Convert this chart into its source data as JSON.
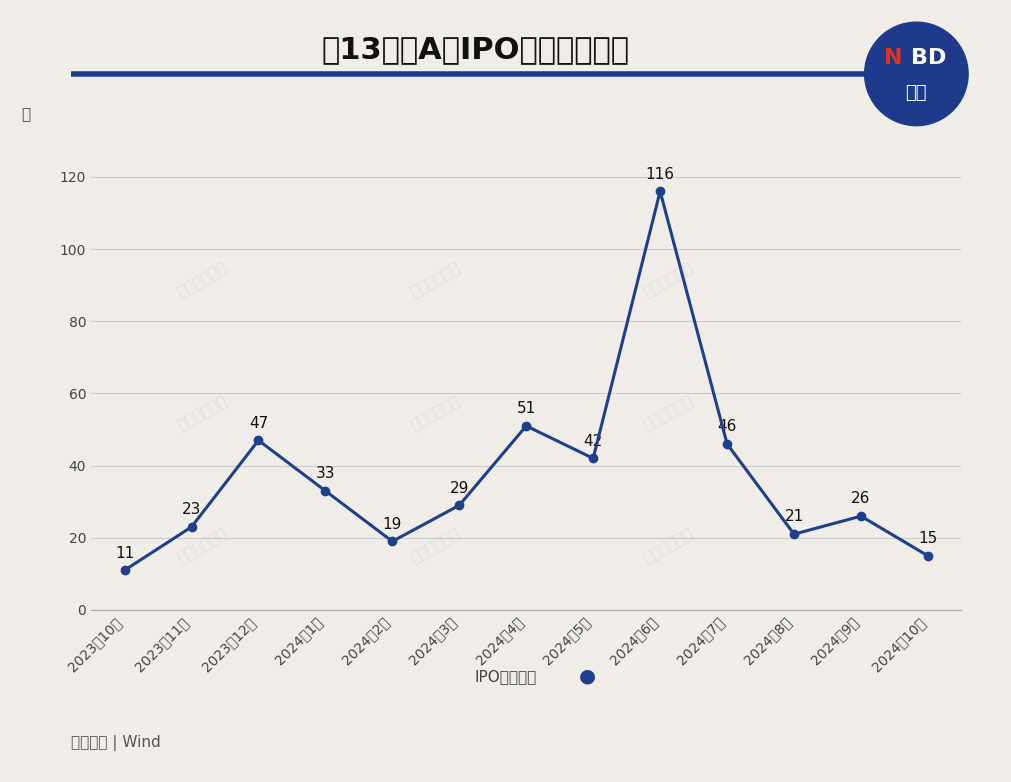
{
  "title": "近13个月A股IPO申报终止数量",
  "ylabel": "家",
  "source": "数据来源 | Wind",
  "legend_label": "IPO终止数量",
  "categories": [
    "2023年10月",
    "2023年11月",
    "2023年12月",
    "2024年1月",
    "2024年2月",
    "2024年3月",
    "2024年4月",
    "2024年5月",
    "2024年6月",
    "2024年7月",
    "2024年8月",
    "2024年9月",
    "2024年10月"
  ],
  "values": [
    11,
    23,
    47,
    33,
    19,
    29,
    51,
    42,
    116,
    46,
    21,
    26,
    15
  ],
  "ylim": [
    0,
    130
  ],
  "yticks": [
    0,
    20,
    40,
    60,
    80,
    100,
    120
  ],
  "line_color": "#1e3f8c",
  "marker_color": "#1e3f8c",
  "bg_color": "#f0ede8",
  "plot_bg_color": "#f0ede8",
  "grid_color": "#cccccc",
  "title_color": "#111111",
  "title_fontsize": 22,
  "label_fontsize": 11,
  "tick_fontsize": 10,
  "annotation_fontsize": 11,
  "source_fontsize": 11,
  "watermark_text": "每日经济新闻",
  "nbd_circle_color": "#1e3a8c",
  "top_line_color": "#1e3a8c"
}
